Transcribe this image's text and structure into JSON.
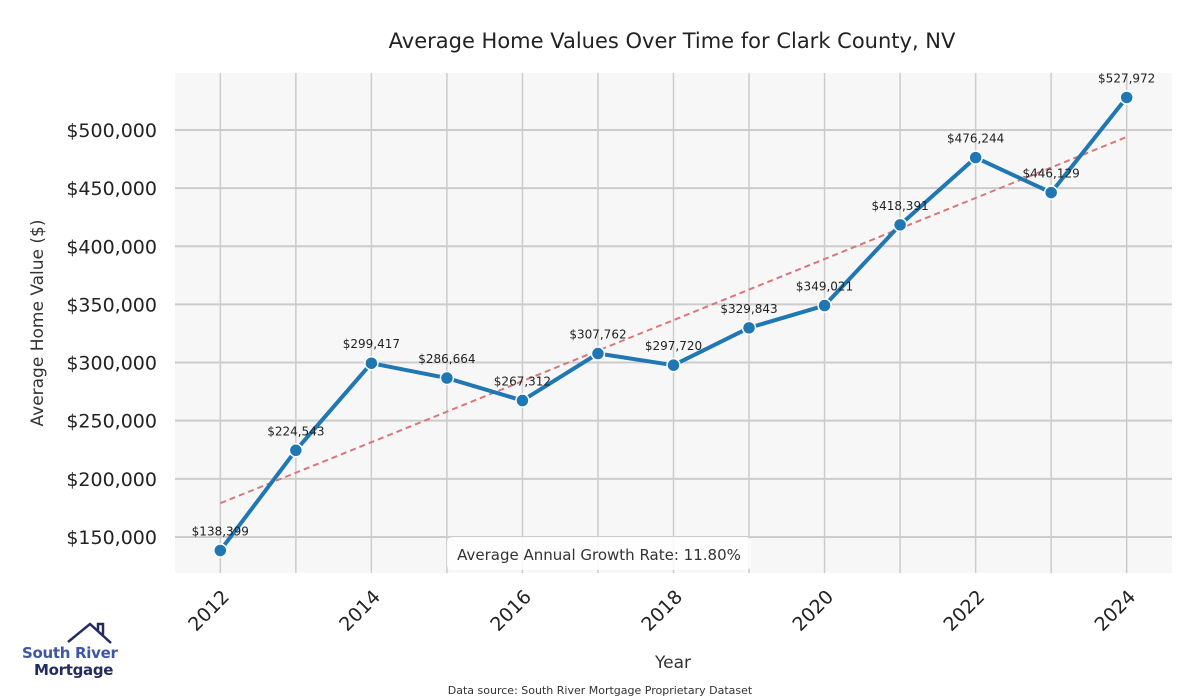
{
  "chart_data": {
    "type": "line",
    "title": "Average Home Values Over Time for Clark County, NV",
    "xlabel": "Year",
    "ylabel": "Average Home Value ($)",
    "x": [
      2012,
      2013,
      2014,
      2015,
      2016,
      2017,
      2018,
      2019,
      2020,
      2021,
      2022,
      2023,
      2024
    ],
    "series": [
      {
        "values": [
          138399,
          224543,
          299417,
          286664,
          267312,
          307762,
          297720,
          329843,
          349021,
          418391,
          476244,
          446129,
          527972
        ],
        "labels": [
          "$138,399",
          "$224,543",
          "$299,417",
          "$286,664",
          "$267,312",
          "$307,762",
          "$297,720",
          "$329,843",
          "$349,021",
          "$418,391",
          "$476,244",
          "$446,129",
          "$527,972"
        ],
        "color": "#1f77b4"
      }
    ],
    "trendline": {
      "start": [
        2012,
        179000
      ],
      "end": [
        2024,
        494000
      ],
      "color": "#d9777a",
      "style": "dashed"
    },
    "xticks": [
      "2012",
      "2014",
      "2016",
      "2018",
      "2020",
      "2022",
      "2024"
    ],
    "yticks": [
      150000,
      200000,
      250000,
      300000,
      350000,
      400000,
      450000,
      500000
    ],
    "ytick_labels": [
      "$150,000",
      "$200,000",
      "$250,000",
      "$300,000",
      "$350,000",
      "$400,000",
      "$450,000",
      "$500,000"
    ],
    "xlim": [
      2011.4,
      2024.6
    ],
    "ylim": [
      119000,
      549000
    ],
    "grid": true,
    "annotation": "Average Annual Growth Rate: 11.80%",
    "source": "Data source: South River Mortgage Proprietary Dataset"
  },
  "logo": {
    "line1": "South River",
    "line2": "Mortgage"
  }
}
